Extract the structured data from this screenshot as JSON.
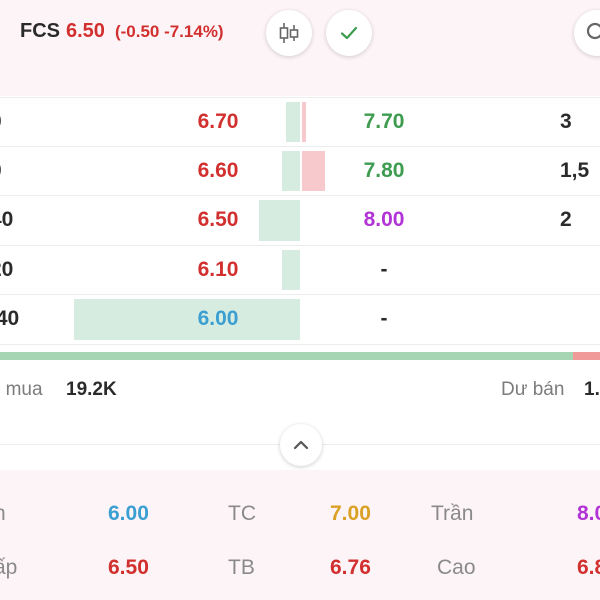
{
  "colors": {
    "up": "#3d9c4f",
    "down": "#d2302f",
    "ceiling": "#b233d6",
    "floor": "#3b9fd1",
    "ref": "#dba124",
    "neutral": "#2b2b2b"
  },
  "header": {
    "symbol": "FCS",
    "price": "6.50",
    "change": "(-0.50 -7.14%)",
    "candle_icon": "candlestick-icon",
    "check_icon": "check-icon",
    "search_icon": "search-icon"
  },
  "orderbook": {
    "rows": [
      {
        "bid_vol": "0",
        "bid_price": "6.70",
        "bid_color": "down",
        "bid_bar": 0.06,
        "ask_price": "7.70",
        "ask_color": "up",
        "ask_bar": 0.03,
        "ask_vol": "3"
      },
      {
        "bid_vol": "0",
        "bid_price": "6.60",
        "bid_color": "down",
        "bid_bar": 0.08,
        "ask_price": "7.80",
        "ask_color": "up",
        "ask_bar": 0.24,
        "ask_vol": "1,5"
      },
      {
        "bid_vol": "40",
        "bid_price": "6.50",
        "bid_color": "down",
        "bid_bar": 0.18,
        "ask_price": "8.00",
        "ask_color": "ceiling",
        "ask_bar": 0,
        "ask_vol": "2"
      },
      {
        "bid_vol": "20",
        "bid_price": "6.10",
        "bid_color": "down",
        "bid_bar": 0.08,
        "ask_price": "-",
        "ask_color": "neutral",
        "ask_bar": 0,
        "ask_vol": ""
      },
      {
        "bid_vol": ",40",
        "bid_price": "6.00",
        "bid_color": "floor",
        "bid_bar": 1.0,
        "ask_price": "-",
        "ask_color": "neutral",
        "ask_bar": 0,
        "ask_vol": ""
      }
    ],
    "buy_ratio": 0.955
  },
  "surplus": {
    "buy_label": "r mua",
    "buy_value": "19.2K",
    "sell_label": "Dư bán",
    "sell_value": "1."
  },
  "collapse_icon": "chevron-up-icon",
  "stats": {
    "low_label": "n",
    "low_value": "6.00",
    "tc_label": "TC",
    "tc_value": "7.00",
    "tran_label": "Trần",
    "tran_value": "8.0",
    "thap_label": "ấp",
    "thap_value": "6.50",
    "tb_label": "TB",
    "tb_value": "6.76",
    "cao_label": "Cao",
    "cao_value": "6.8"
  }
}
